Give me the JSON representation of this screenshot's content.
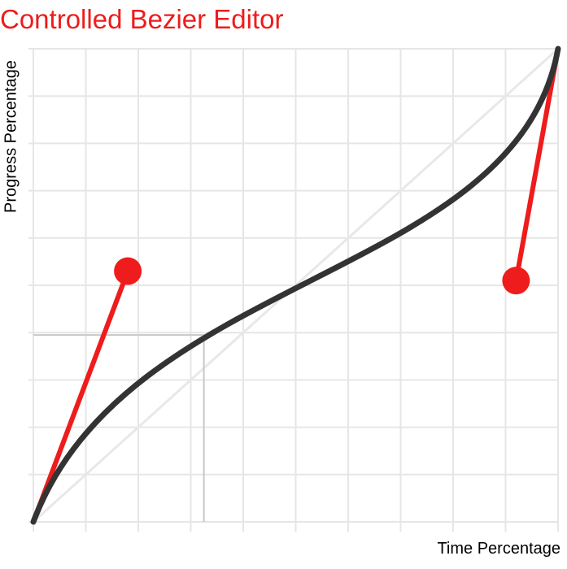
{
  "title": "Controlled Bezier Editor",
  "axes": {
    "x_label": "Time Percentage",
    "y_label": "Progress Percentage",
    "grid_divisions": 10,
    "range": [
      0,
      1
    ]
  },
  "curve": {
    "start": [
      0,
      0
    ],
    "control_1": [
      0.18,
      0.53
    ],
    "control_2": [
      0.92,
      0.51
    ],
    "end": [
      1,
      1
    ]
  },
  "readout": {
    "time": 0.325,
    "progress": 0.395
  },
  "colors": {
    "accent": "#ee1c1c",
    "curve": "#333333",
    "grid": "#e6e6e6",
    "diagonal": "#e8e8e8",
    "readout": "#c8c8c8"
  }
}
